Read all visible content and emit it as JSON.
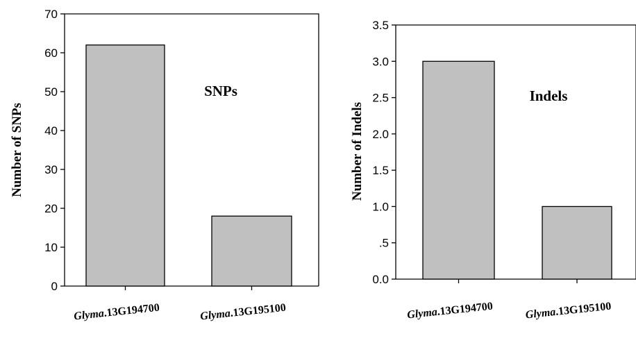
{
  "chart_data": [
    {
      "type": "bar",
      "categories": [
        "Glyma.13G194700",
        "Glyma.13G195100"
      ],
      "category_prefix": "Glyma",
      "category_suffixes": [
        ".13G194700",
        ".13G195100"
      ],
      "values": [
        62,
        18
      ],
      "ylabel": "Number of SNPs",
      "annotation": "SNPs",
      "ylim": [
        0,
        70
      ],
      "yticks": [
        0,
        10,
        20,
        30,
        40,
        50,
        60,
        70
      ],
      "ytick_labels": [
        "0",
        "10",
        "20",
        "30",
        "40",
        "50",
        "60",
        "70"
      ],
      "bar_color": "#c0c0c0",
      "grid": false
    },
    {
      "type": "bar",
      "categories": [
        "Glyma.13G194700",
        "Glyma.13G195100"
      ],
      "category_prefix": "Glyma",
      "category_suffixes": [
        ".13G194700",
        ".13G195100"
      ],
      "values": [
        3.0,
        1.0
      ],
      "ylabel": "Number of Indels",
      "annotation": "Indels",
      "ylim": [
        0,
        3.5
      ],
      "yticks": [
        0,
        0.5,
        1.0,
        1.5,
        2.0,
        2.5,
        3.0,
        3.5
      ],
      "ytick_labels": [
        "0.0",
        ".5",
        "1.0",
        "1.5",
        "2.0",
        "2.5",
        "3.0",
        "3.5"
      ],
      "bar_color": "#c0c0c0",
      "grid": false
    }
  ]
}
